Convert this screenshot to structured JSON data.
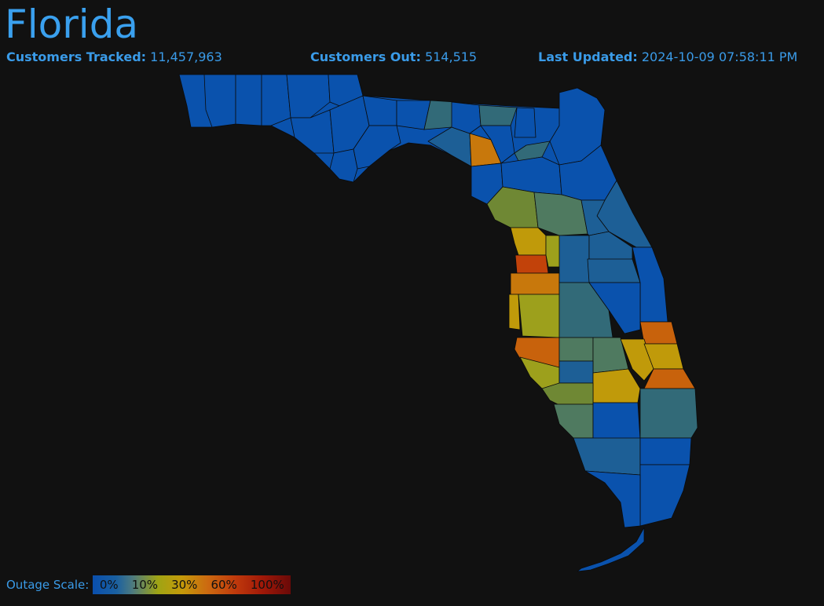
{
  "header": {
    "title": "Florida",
    "tracked_label": "Customers Tracked:",
    "tracked_value": "11,457,963",
    "out_label": "Customers Out:",
    "out_value": "514,515",
    "updated_label": "Last Updated:",
    "updated_value": "2024-10-09 07:58:11 PM"
  },
  "scale": {
    "label": "Outage Scale:",
    "ticks": [
      "0%",
      "10%",
      "30%",
      "60%",
      "100%"
    ]
  },
  "colors": {
    "background": "#111111",
    "title": "#3aa0ee",
    "level_0": "#0a52ad",
    "level_1": "#1d5f96",
    "level_2": "#326a78",
    "level_3": "#4f7a60",
    "level_4": "#6f8834",
    "level_5": "#9da01c",
    "level_6": "#c09a0a",
    "level_7": "#c8780c",
    "level_8": "#c8620c",
    "level_9": "#c2420a"
  }
}
